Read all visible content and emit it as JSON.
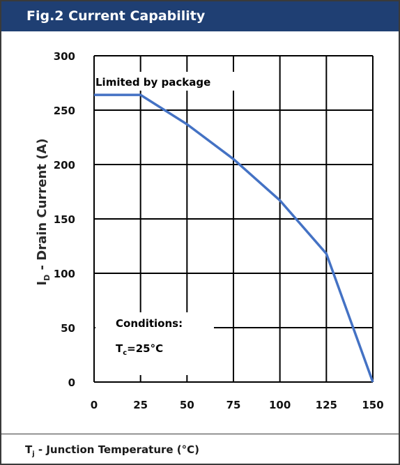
{
  "title": "Fig.2 Current Capability",
  "chart_data": {
    "type": "line",
    "ylabel_main": "I",
    "ylabel_sub": "D",
    "ylabel_rest": " - Drain Current (A)",
    "xlabel_main": "T",
    "xlabel_sub": "j",
    "xlabel_rest": " - Junction Temperature (°C)",
    "xlim": [
      0,
      150
    ],
    "ylim": [
      0,
      300
    ],
    "xticks": [
      0,
      25,
      50,
      75,
      100,
      125,
      150
    ],
    "yticks": [
      0,
      50,
      100,
      150,
      200,
      250,
      300
    ],
    "grid": true,
    "series": [
      {
        "x": [
          0,
          25,
          50,
          75,
          100,
          125,
          150
        ],
        "y": [
          264,
          264,
          237,
          205,
          167,
          118,
          0
        ]
      }
    ],
    "annotations": {
      "limited": "Limited by package",
      "conditions": "Conditions:",
      "tc_main": "T",
      "tc_sub": "c",
      "tc_rest": "=25°C"
    },
    "line_color": "#4472c4"
  }
}
